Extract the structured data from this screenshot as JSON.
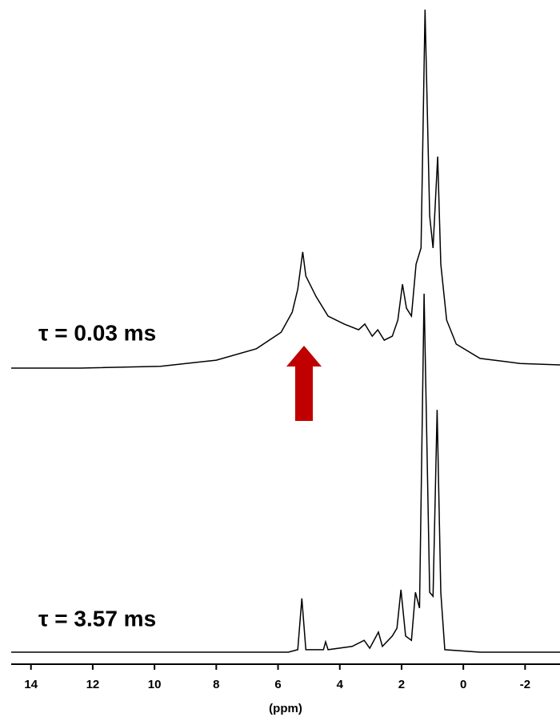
{
  "chart_data": {
    "type": "line",
    "xlabel": "(ppm)",
    "xlim": [
      14.64,
      -3.13
    ],
    "xticks": [
      14,
      12,
      10,
      8,
      6,
      4,
      2,
      0,
      -2
    ],
    "grid": false,
    "series": [
      {
        "name": "τ = 0.03 ms",
        "color": "#000000",
        "x": [
          14.64,
          12.4,
          9.8,
          8.0,
          6.7,
          5.9,
          5.54,
          5.36,
          5.2,
          5.1,
          4.77,
          4.38,
          3.86,
          3.39,
          3.19,
          2.95,
          2.77,
          2.56,
          2.3,
          2.12,
          1.97,
          1.84,
          1.68,
          1.53,
          1.37,
          1.24,
          1.09,
          0.98,
          0.83,
          0.73,
          0.54,
          0.23,
          -0.54,
          -1.84,
          -3.13
        ],
        "values": [
          0,
          0,
          0.5,
          2.2,
          5.4,
          10,
          15.6,
          22,
          32.4,
          25.7,
          20,
          14.5,
          12.3,
          10.7,
          12.3,
          8.9,
          10.7,
          7.8,
          8.9,
          13.4,
          23.4,
          16.7,
          14.5,
          29,
          33.5,
          100,
          42.4,
          33.5,
          59,
          29,
          13.4,
          6.7,
          2.7,
          1.3,
          0.9
        ]
      },
      {
        "name": "τ = 3.57 ms",
        "color": "#000000",
        "x": [
          14.64,
          5.67,
          5.36,
          5.23,
          5.1,
          4.53,
          4.46,
          4.38,
          3.6,
          3.21,
          3.03,
          2.75,
          2.62,
          2.3,
          2.15,
          2.02,
          1.87,
          1.68,
          1.55,
          1.42,
          1.27,
          1.09,
          0.98,
          0.85,
          0.73,
          0.6,
          -0.54,
          -3.13
        ],
        "values": [
          0,
          0,
          0.7,
          15,
          0.7,
          0.7,
          2.9,
          0.7,
          1.6,
          3.3,
          1.1,
          5.6,
          1.6,
          4.5,
          6.7,
          17.4,
          4.5,
          3.3,
          16.7,
          12.3,
          100,
          16.7,
          15.6,
          67.6,
          16.7,
          0.7,
          0,
          0
        ]
      }
    ]
  }
}
